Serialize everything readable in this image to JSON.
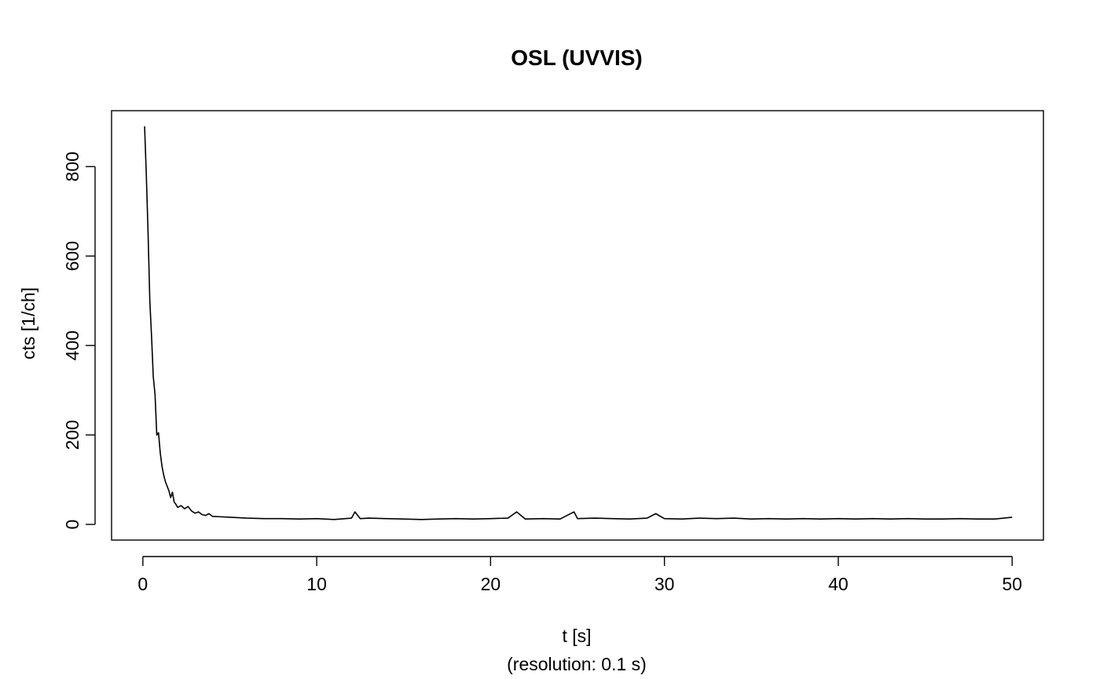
{
  "chart_data": {
    "type": "line",
    "title": "OSL (UVVIS)",
    "xlabel": "t [s]",
    "xlabel_sub": "(resolution: 0.1 s)",
    "ylabel": "cts [1/ch]",
    "xlim": [
      -1.8,
      51.8
    ],
    "ylim": [
      -35,
      925
    ],
    "xticks": [
      0,
      10,
      20,
      30,
      40,
      50
    ],
    "yticks": [
      0,
      200,
      400,
      600,
      800
    ],
    "grid": false,
    "line_color": "#000000",
    "series": [
      {
        "x": [
          0.1,
          0.2,
          0.3,
          0.4,
          0.5,
          0.6,
          0.7,
          0.8,
          0.9,
          1.0,
          1.1,
          1.2,
          1.3,
          1.4,
          1.5,
          1.6,
          1.7,
          1.8,
          1.9,
          2.0,
          2.2,
          2.4,
          2.6,
          2.8,
          3.0,
          3.2,
          3.4,
          3.6,
          3.8,
          4.0,
          4.5,
          5.0,
          6,
          7,
          8,
          9,
          10,
          11,
          12,
          12.2,
          12.5,
          13,
          14,
          15,
          16,
          17,
          18,
          19,
          20,
          21,
          21.5,
          22,
          23,
          24,
          24.8,
          25,
          26,
          27,
          28,
          29,
          29.5,
          30,
          31,
          32,
          33,
          34,
          35,
          36,
          37,
          38,
          39,
          40,
          41,
          42,
          43,
          44,
          45,
          46,
          47,
          48,
          49,
          50
        ],
        "values": [
          890,
          780,
          650,
          500,
          420,
          330,
          290,
          200,
          205,
          160,
          130,
          110,
          95,
          85,
          75,
          60,
          72,
          50,
          45,
          38,
          42,
          35,
          40,
          30,
          25,
          28,
          22,
          20,
          24,
          18,
          17,
          16,
          14,
          13,
          13,
          12,
          13,
          11,
          14,
          28,
          13,
          14,
          13,
          12,
          11,
          12,
          13,
          12,
          13,
          14,
          28,
          12,
          13,
          12,
          28,
          13,
          14,
          13,
          12,
          14,
          24,
          13,
          12,
          14,
          13,
          14,
          12,
          13,
          12,
          13,
          12,
          13,
          12,
          13,
          12,
          13,
          12,
          12,
          13,
          12,
          12,
          16
        ]
      }
    ]
  }
}
